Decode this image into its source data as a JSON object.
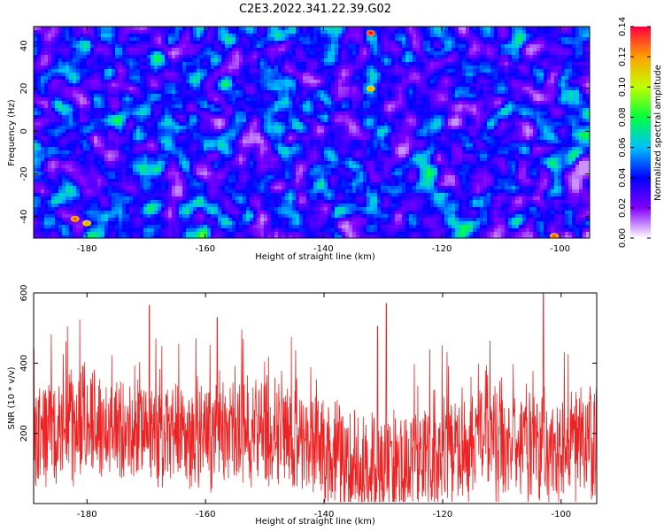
{
  "title": "C2E3.2022.341.22.39.G02",
  "colors": {
    "snr_line": "#ee2222",
    "frame": "#000000",
    "colormap": [
      "#ffffff",
      "#8000ff",
      "#0000ff",
      "#00bfff",
      "#00ff40",
      "#c0ff00",
      "#ffa000",
      "#ff0040"
    ]
  },
  "chart_data": [
    {
      "type": "heatmap",
      "xlabel": "Height of straight line (km)",
      "ylabel": "Frequency (Hz)",
      "xlim": [
        -189,
        -95
      ],
      "ylim": [
        -50,
        49
      ],
      "xticks": [
        -180,
        -160,
        -140,
        -120,
        -100
      ],
      "yticks": [
        -40,
        -20,
        0,
        20,
        40
      ],
      "colorbar": {
        "label": "Normalized spectral amplitude",
        "range": [
          0.0,
          0.14
        ],
        "ticks": [
          "0.00",
          "0.02",
          "0.04",
          "0.06",
          "0.08",
          "0.10",
          "0.12",
          "0.14"
        ]
      },
      "description_values": "dense speckle field; typical amplitude 0.02-0.06 with scattered peaks up to ~0.14",
      "peaks": [
        {
          "x": -132,
          "y": 46,
          "amp": 0.14
        },
        {
          "x": -182,
          "y": -41,
          "amp": 0.13
        },
        {
          "x": -101,
          "y": -49,
          "amp": 0.13
        },
        {
          "x": -132,
          "y": 20,
          "amp": 0.12
        },
        {
          "x": -180,
          "y": -43,
          "amp": 0.12
        }
      ]
    },
    {
      "type": "line",
      "xlabel": "Height of straight line (km)",
      "ylabel": "SNR (10 * v/v)",
      "xlim": [
        -189,
        -94
      ],
      "ylim": [
        0,
        600
      ],
      "xticks": [
        -180,
        -160,
        -140,
        -120,
        -100
      ],
      "yticks": [
        200,
        400,
        600
      ],
      "series": [
        {
          "values_summary": "noisy SNR trace, mostly 50-350, baseline ~150-200",
          "peaks": [
            {
              "x": -103,
              "y": 600
            },
            {
              "x": -129.5,
              "y": 570
            },
            {
              "x": -169.5,
              "y": 565
            },
            {
              "x": -158,
              "y": 530
            },
            {
              "x": -131,
              "y": 505
            }
          ]
        }
      ]
    }
  ]
}
